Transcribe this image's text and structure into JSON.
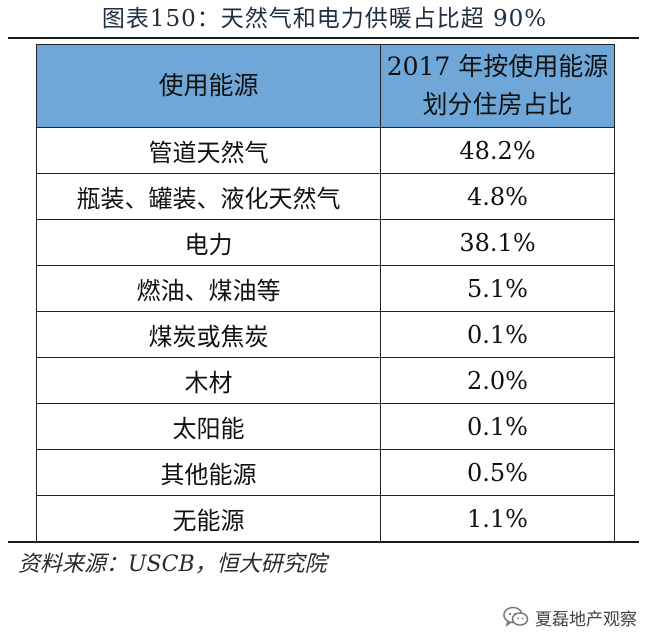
{
  "title": "图表150：天然气和电力供暖占比超 90%",
  "table": {
    "headers": [
      "使用能源",
      "2017 年按使用能源划分住房占比"
    ],
    "rows": [
      {
        "source": "管道天然气",
        "share": "48.2%"
      },
      {
        "source": "瓶装、罐装、液化天然气",
        "share": "4.8%"
      },
      {
        "source": "电力",
        "share": "38.1%"
      },
      {
        "source": "燃油、煤油等",
        "share": "5.1%"
      },
      {
        "source": "煤炭或焦炭",
        "share": "0.1%"
      },
      {
        "source": "木材",
        "share": "2.0%"
      },
      {
        "source": "太阳能",
        "share": "0.1%"
      },
      {
        "source": "其他能源",
        "share": "0.5%"
      },
      {
        "source": "无能源",
        "share": "1.1%"
      }
    ]
  },
  "source_note": "资料来源：USCB，恒大研究院",
  "watermark": {
    "icon": "wechat-icon",
    "text": "夏磊地产观察"
  },
  "colors": {
    "header_background": "#6fa8d8",
    "rule": "#1b1b1b"
  }
}
